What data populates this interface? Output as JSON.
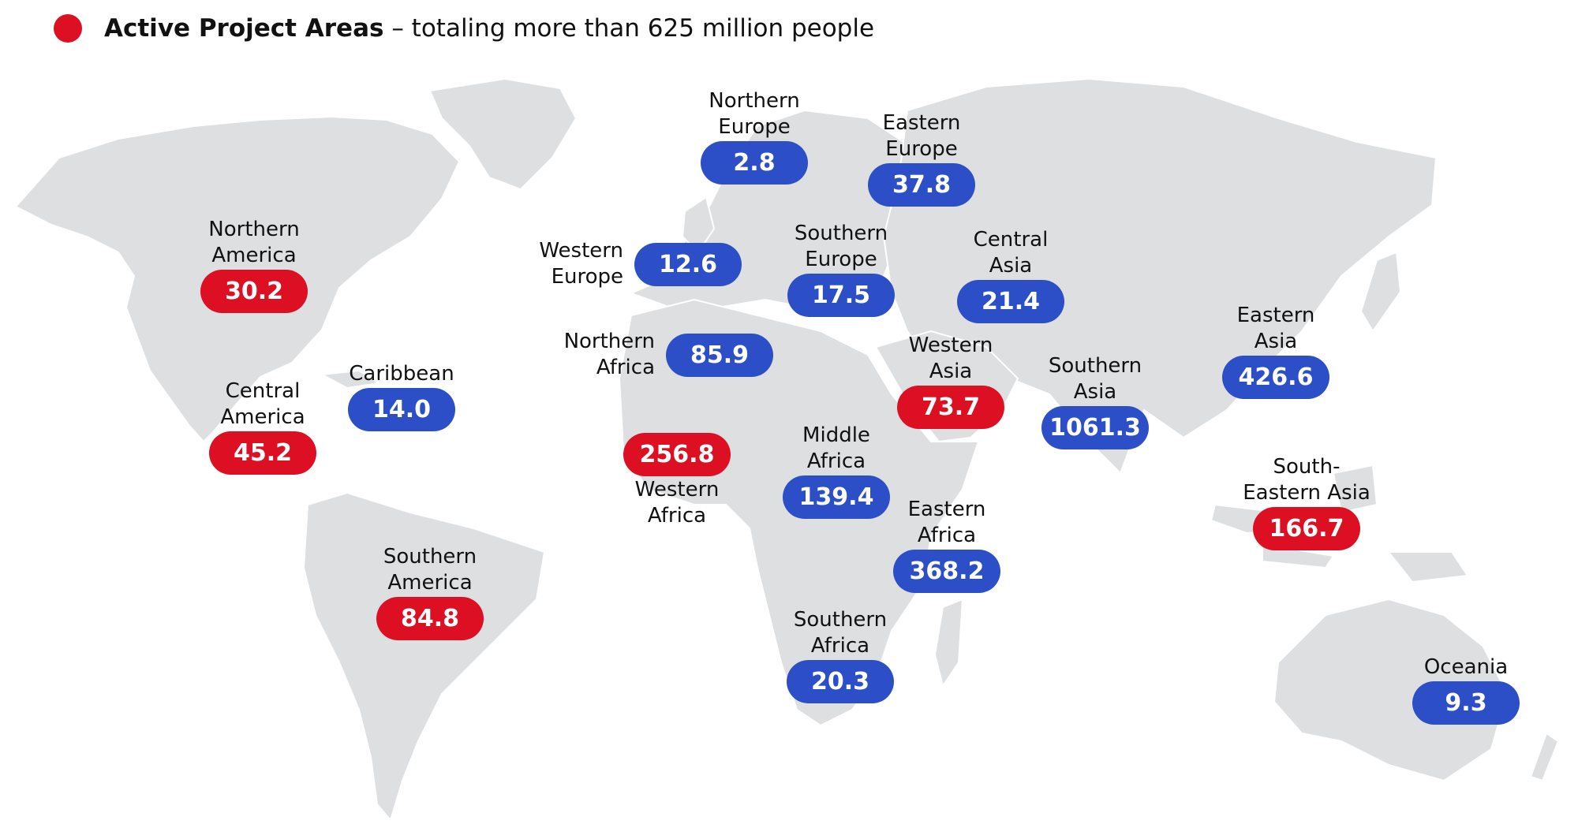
{
  "legend": {
    "bold": "Active Project Areas",
    "rest": " – totaling more than 625 million people",
    "color": "#dc0f23"
  },
  "colors": {
    "active": "#dc0f23",
    "other": "#2c4fc8",
    "land": "#dedfe1"
  },
  "regions": [
    {
      "name_lines": [
        "Northern",
        "America"
      ],
      "value": "30.2",
      "active": true
    },
    {
      "name_lines": [
        "Central",
        "America"
      ],
      "value": "45.2",
      "active": true
    },
    {
      "name_lines": [
        "Caribbean"
      ],
      "value": "14.0",
      "active": false
    },
    {
      "name_lines": [
        "Southern",
        "America"
      ],
      "value": "84.8",
      "active": true
    },
    {
      "name_lines": [
        "Northern",
        "Europe"
      ],
      "value": "2.8",
      "active": false
    },
    {
      "name_lines": [
        "Eastern",
        "Europe"
      ],
      "value": "37.8",
      "active": false
    },
    {
      "name_lines": [
        "Western",
        "Europe"
      ],
      "value": "12.6",
      "active": false
    },
    {
      "name_lines": [
        "Southern",
        "Europe"
      ],
      "value": "17.5",
      "active": false
    },
    {
      "name_lines": [
        "Central",
        "Asia"
      ],
      "value": "21.4",
      "active": false
    },
    {
      "name_lines": [
        "Northern",
        "Africa"
      ],
      "value": "85.9",
      "active": false
    },
    {
      "name_lines": [
        "Western",
        "Asia"
      ],
      "value": "73.7",
      "active": true
    },
    {
      "name_lines": [
        "Southern",
        "Asia"
      ],
      "value": "1061.3",
      "active": false
    },
    {
      "name_lines": [
        "Eastern",
        "Asia"
      ],
      "value": "426.6",
      "active": false
    },
    {
      "name_lines": [
        "Western",
        "Africa"
      ],
      "value": "256.8",
      "active": true
    },
    {
      "name_lines": [
        "Middle",
        "Africa"
      ],
      "value": "139.4",
      "active": false
    },
    {
      "name_lines": [
        "Eastern",
        "Africa"
      ],
      "value": "368.2",
      "active": false
    },
    {
      "name_lines": [
        "South-",
        "Eastern Asia"
      ],
      "value": "166.7",
      "active": true
    },
    {
      "name_lines": [
        "Southern",
        "Africa"
      ],
      "value": "20.3",
      "active": false
    },
    {
      "name_lines": [
        "Oceania"
      ],
      "value": "9.3",
      "active": false
    }
  ]
}
